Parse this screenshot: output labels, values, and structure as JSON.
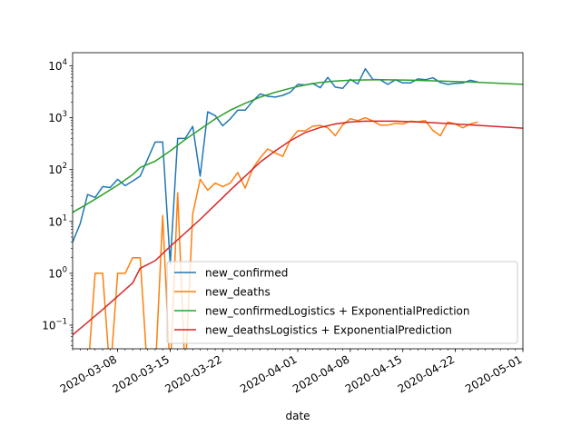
{
  "chart_data": {
    "type": "line",
    "xlabel": "date",
    "ylabel": "",
    "yscale": "log",
    "xlim": [
      "2020-03-02",
      "2020-05-01"
    ],
    "ylim": [
      0.035,
      18000
    ],
    "x_ticks": [
      "2020-03-08",
      "2020-03-15",
      "2020-03-22",
      "2020-04-01",
      "2020-04-08",
      "2020-04-15",
      "2020-04-22",
      "2020-05-01"
    ],
    "y_ticks": [
      {
        "value": 0.1,
        "base": "10",
        "exp": "−1"
      },
      {
        "value": 1,
        "base": "10",
        "exp": "0"
      },
      {
        "value": 10,
        "base": "10",
        "exp": "1"
      },
      {
        "value": 100,
        "base": "10",
        "exp": "2"
      },
      {
        "value": 1000,
        "base": "10",
        "exp": "3"
      },
      {
        "value": 10000,
        "base": "10",
        "exp": "4"
      }
    ],
    "legend_position": "lower-right",
    "series": [
      {
        "name": "new_confirmed",
        "color": "#1f77b4",
        "points": [
          [
            "2020-03-02",
            4
          ],
          [
            "2020-03-03",
            9
          ],
          [
            "2020-03-04",
            33
          ],
          [
            "2020-03-05",
            29
          ],
          [
            "2020-03-06",
            47
          ],
          [
            "2020-03-07",
            45
          ],
          [
            "2020-03-08",
            65
          ],
          [
            "2020-03-09",
            49
          ],
          [
            "2020-03-10",
            60
          ],
          [
            "2020-03-11",
            75
          ],
          [
            "2020-03-12",
            160
          ],
          [
            "2020-03-13",
            340
          ],
          [
            "2020-03-14",
            340
          ],
          [
            "2020-03-15",
            1.5
          ],
          [
            "2020-03-16",
            400
          ],
          [
            "2020-03-17",
            400
          ],
          [
            "2020-03-18",
            680
          ],
          [
            "2020-03-19",
            75
          ],
          [
            "2020-03-20",
            1300
          ],
          [
            "2020-03-21",
            1100
          ],
          [
            "2020-03-22",
            700
          ],
          [
            "2020-03-23",
            950
          ],
          [
            "2020-03-24",
            1400
          ],
          [
            "2020-03-25",
            1400
          ],
          [
            "2020-03-26",
            2100
          ],
          [
            "2020-03-27",
            2900
          ],
          [
            "2020-03-28",
            2600
          ],
          [
            "2020-03-29",
            2500
          ],
          [
            "2020-03-30",
            2700
          ],
          [
            "2020-03-31",
            3100
          ],
          [
            "2020-04-01",
            4400
          ],
          [
            "2020-04-02",
            4300
          ],
          [
            "2020-04-03",
            4600
          ],
          [
            "2020-04-04",
            3800
          ],
          [
            "2020-04-05",
            6000
          ],
          [
            "2020-04-06",
            3900
          ],
          [
            "2020-04-07",
            3700
          ],
          [
            "2020-04-08",
            5500
          ],
          [
            "2020-04-09",
            4500
          ],
          [
            "2020-04-10",
            8800
          ],
          [
            "2020-04-11",
            5500
          ],
          [
            "2020-04-12",
            5400
          ],
          [
            "2020-04-13",
            4400
          ],
          [
            "2020-04-14",
            5400
          ],
          [
            "2020-04-15",
            4700
          ],
          [
            "2020-04-16",
            4700
          ],
          [
            "2020-04-17",
            5600
          ],
          [
            "2020-04-18",
            5400
          ],
          [
            "2020-04-19",
            5900
          ],
          [
            "2020-04-20",
            4800
          ],
          [
            "2020-04-21",
            4400
          ],
          [
            "2020-04-22",
            4600
          ],
          [
            "2020-04-23",
            4700
          ],
          [
            "2020-04-24",
            5300
          ],
          [
            "2020-04-25",
            4900
          ]
        ]
      },
      {
        "name": "new_deaths",
        "color": "#ff7f0e",
        "points": [
          [
            "2020-03-02",
            0
          ],
          [
            "2020-03-03",
            0
          ],
          [
            "2020-03-04",
            0
          ],
          [
            "2020-03-05",
            1
          ],
          [
            "2020-03-06",
            1
          ],
          [
            "2020-03-07",
            0
          ],
          [
            "2020-03-08",
            1
          ],
          [
            "2020-03-09",
            1
          ],
          [
            "2020-03-10",
            2
          ],
          [
            "2020-03-11",
            2
          ],
          [
            "2020-03-12",
            0
          ],
          [
            "2020-03-13",
            0
          ],
          [
            "2020-03-14",
            13
          ],
          [
            "2020-03-15",
            0
          ],
          [
            "2020-03-16",
            36
          ],
          [
            "2020-03-17",
            0
          ],
          [
            "2020-03-18",
            14
          ],
          [
            "2020-03-19",
            65
          ],
          [
            "2020-03-20",
            40
          ],
          [
            "2020-03-21",
            55
          ],
          [
            "2020-03-22",
            47
          ],
          [
            "2020-03-23",
            55
          ],
          [
            "2020-03-24",
            88
          ],
          [
            "2020-03-25",
            44
          ],
          [
            "2020-03-26",
            105
          ],
          [
            "2020-03-27",
            170
          ],
          [
            "2020-03-28",
            250
          ],
          [
            "2020-03-29",
            210
          ],
          [
            "2020-03-30",
            180
          ],
          [
            "2020-03-31",
            370
          ],
          [
            "2020-04-01",
            560
          ],
          [
            "2020-04-02",
            560
          ],
          [
            "2020-04-03",
            690
          ],
          [
            "2020-04-04",
            710
          ],
          [
            "2020-04-05",
            640
          ],
          [
            "2020-04-06",
            450
          ],
          [
            "2020-04-07",
            730
          ],
          [
            "2020-04-08",
            960
          ],
          [
            "2020-04-09",
            880
          ],
          [
            "2020-04-10",
            1000
          ],
          [
            "2020-04-11",
            870
          ],
          [
            "2020-04-12",
            720
          ],
          [
            "2020-04-13",
            720
          ],
          [
            "2020-04-14",
            780
          ],
          [
            "2020-04-15",
            760
          ],
          [
            "2020-04-16",
            860
          ],
          [
            "2020-04-17",
            840
          ],
          [
            "2020-04-18",
            880
          ],
          [
            "2020-04-19",
            570
          ],
          [
            "2020-04-20",
            450
          ],
          [
            "2020-04-21",
            830
          ],
          [
            "2020-04-22",
            760
          ],
          [
            "2020-04-23",
            640
          ],
          [
            "2020-04-24",
            760
          ],
          [
            "2020-04-25",
            830
          ]
        ]
      },
      {
        "name": "new_confirmedLogistics + ExponentialPrediction",
        "color": "#2ca02c",
        "points": [
          [
            "2020-03-02",
            15
          ],
          [
            "2020-03-04",
            22
          ],
          [
            "2020-03-06",
            33
          ],
          [
            "2020-03-08",
            50
          ],
          [
            "2020-03-10",
            80
          ],
          [
            "2020-03-11",
            110
          ],
          [
            "2020-03-13",
            145
          ],
          [
            "2020-03-15",
            230
          ],
          [
            "2020-03-17",
            380
          ],
          [
            "2020-03-19",
            600
          ],
          [
            "2020-03-21",
            950
          ],
          [
            "2020-03-23",
            1400
          ],
          [
            "2020-03-25",
            1900
          ],
          [
            "2020-03-27",
            2500
          ],
          [
            "2020-03-29",
            3100
          ],
          [
            "2020-03-31",
            3700
          ],
          [
            "2020-04-02",
            4300
          ],
          [
            "2020-04-04",
            4800
          ],
          [
            "2020-04-06",
            5100
          ],
          [
            "2020-04-08",
            5300
          ],
          [
            "2020-04-12",
            5400
          ],
          [
            "2020-04-16",
            5300
          ],
          [
            "2020-04-20",
            5100
          ],
          [
            "2020-04-24",
            4900
          ],
          [
            "2020-04-28",
            4600
          ],
          [
            "2020-05-01",
            4400
          ]
        ]
      },
      {
        "name": "new_deathsLogistics + ExponentialPrediction",
        "color": "#d62728",
        "points": [
          [
            "2020-03-02",
            0.065
          ],
          [
            "2020-03-06",
            0.2
          ],
          [
            "2020-03-10",
            0.65
          ],
          [
            "2020-03-11",
            1.25
          ],
          [
            "2020-03-13",
            1.75
          ],
          [
            "2020-03-15",
            3.3
          ],
          [
            "2020-03-17",
            6
          ],
          [
            "2020-03-19",
            11
          ],
          [
            "2020-03-21",
            21
          ],
          [
            "2020-03-23",
            40
          ],
          [
            "2020-03-25",
            75
          ],
          [
            "2020-03-27",
            140
          ],
          [
            "2020-03-29",
            230
          ],
          [
            "2020-03-31",
            360
          ],
          [
            "2020-04-02",
            520
          ],
          [
            "2020-04-04",
            650
          ],
          [
            "2020-04-06",
            760
          ],
          [
            "2020-04-08",
            830
          ],
          [
            "2020-04-10",
            860
          ],
          [
            "2020-04-14",
            860
          ],
          [
            "2020-04-18",
            820
          ],
          [
            "2020-04-22",
            760
          ],
          [
            "2020-04-26",
            700
          ],
          [
            "2020-05-01",
            630
          ]
        ]
      }
    ]
  }
}
